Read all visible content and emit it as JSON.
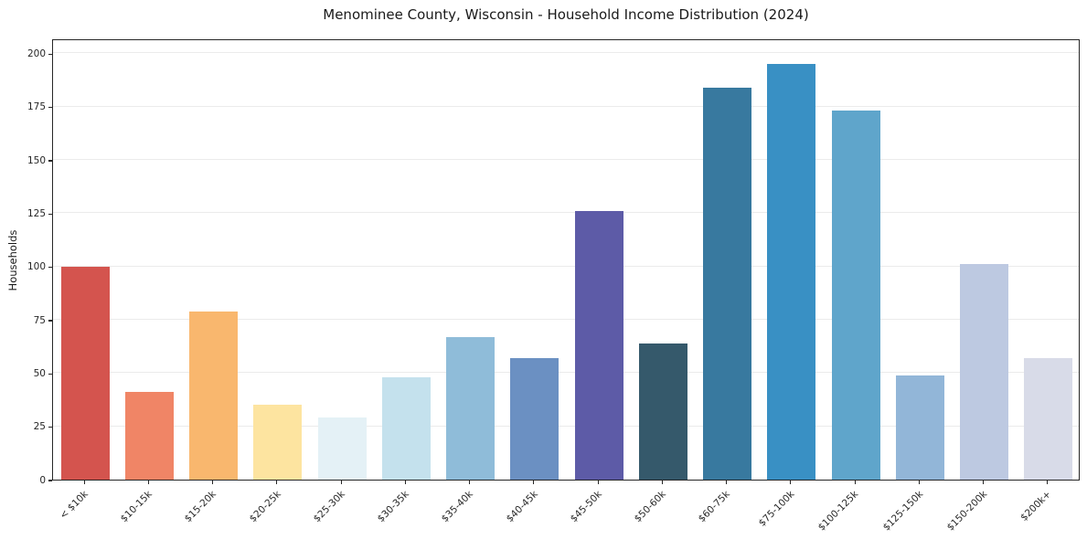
{
  "chart_data": {
    "type": "bar",
    "title": "Menominee County, Wisconsin - Household Income Distribution (2024)",
    "xlabel": "",
    "ylabel": "Households",
    "categories": [
      "< $10k",
      "$10-15k",
      "$15-20k",
      "$20-25k",
      "$25-30k",
      "$30-35k",
      "$35-40k",
      "$40-45k",
      "$45-50k",
      "$50-60k",
      "$60-75k",
      "$75-100k",
      "$100-125k",
      "$125-150k",
      "$150-200k",
      "$200k+"
    ],
    "values": [
      100,
      41,
      79,
      35,
      29,
      48,
      67,
      57,
      126,
      64,
      184,
      195,
      173,
      49,
      101,
      57
    ],
    "bar_colors": [
      "#d4544e",
      "#f08566",
      "#f9b76e",
      "#fde4a0",
      "#e4f1f6",
      "#c4e1ed",
      "#8fbcd9",
      "#6b90c2",
      "#5d5ba7",
      "#35596b",
      "#38799f",
      "#3990c4",
      "#5fa5cb",
      "#92b6d8",
      "#bdc9e1",
      "#d8dbe8"
    ],
    "ylim": [
      0,
      207
    ],
    "y_ticks": [
      0,
      25,
      50,
      75,
      100,
      125,
      150,
      175,
      200
    ],
    "grid": "horizontal",
    "legend": "none",
    "background_color": "#ffffff",
    "spine_color": "#262626",
    "gridline_color": "#ebebeb"
  }
}
